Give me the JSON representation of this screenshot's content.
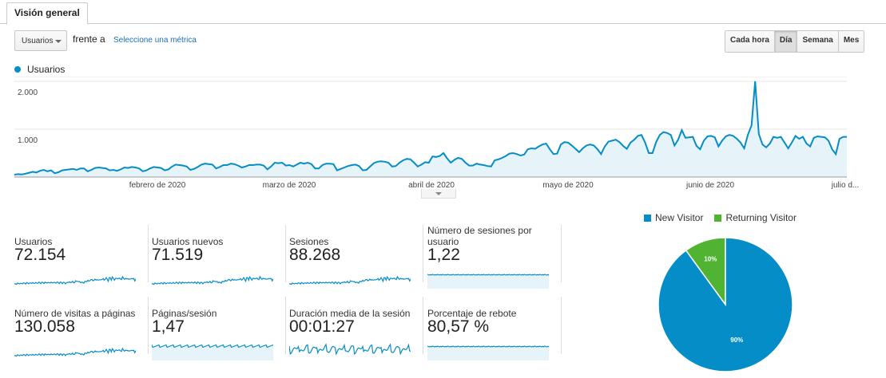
{
  "tab": {
    "label": "Visión general"
  },
  "controls": {
    "metric_select": "Usuarios",
    "versus_text": "frente a",
    "select_metric_link": "Seleccione una métrica",
    "granularity": [
      "Cada hora",
      "Día",
      "Semana",
      "Mes"
    ],
    "granularity_active": "Día"
  },
  "colors": {
    "series": "#058dc7",
    "area": "#e6f4fa",
    "returning": "#50b432"
  },
  "chart_data": [
    {
      "type": "area",
      "title": "",
      "legend": [
        "Usuarios"
      ],
      "legend_position": "top-left",
      "y_ticks": [
        "2.000",
        "1.000"
      ],
      "ylim": [
        0,
        2000
      ],
      "x_ticks": [
        "febrero de 2020",
        "marzo de 2020",
        "abril de 2020",
        "mayo de 2020",
        "junio de 2020",
        "julio d..."
      ],
      "grid": true,
      "series": [
        {
          "name": "Usuarios",
          "values": [
            50,
            60,
            55,
            70,
            90,
            110,
            95,
            130,
            150,
            120,
            140,
            80,
            100,
            140,
            150,
            160,
            170,
            150,
            180,
            180,
            120,
            150,
            190,
            200,
            190,
            180,
            140,
            150,
            130,
            160,
            200,
            190,
            210,
            200,
            180,
            120,
            140,
            180,
            210,
            200,
            190,
            140,
            160,
            220,
            260,
            250,
            240,
            220,
            150,
            170,
            210,
            260,
            280,
            270,
            260,
            180,
            210,
            250,
            250,
            280,
            270,
            240,
            200,
            220,
            250,
            250,
            260,
            260,
            240,
            160,
            220,
            300,
            290,
            300,
            240,
            250,
            220,
            260,
            300,
            280,
            300,
            270,
            180,
            180,
            250,
            280,
            280,
            270,
            140,
            170,
            200,
            230,
            250,
            260,
            230,
            140,
            150,
            220,
            290,
            320,
            330,
            320,
            300,
            220,
            230,
            300,
            350,
            380,
            370,
            300,
            220,
            260,
            310,
            300,
            430,
            420,
            440,
            500,
            390,
            300,
            360,
            400,
            380,
            300,
            240,
            240,
            280,
            260,
            250,
            230,
            220,
            350,
            370,
            400,
            440,
            490,
            500,
            480,
            450,
            470,
            580,
            600,
            590,
            640,
            680,
            700,
            580,
            480,
            490,
            680,
            730,
            720,
            660,
            590,
            520,
            600,
            660,
            680,
            660,
            580,
            480,
            640,
            740,
            760,
            780,
            730,
            650,
            590,
            720,
            780,
            860,
            880,
            720,
            500,
            500,
            730,
            880,
            940,
            920,
            880,
            660,
            780,
            980,
            820,
            830,
            840,
            650,
            580,
            760,
            850,
            860,
            830,
            640,
            760,
            850,
            880,
            860,
            800,
            720,
            600,
            880,
            1080,
            2000,
            900,
            680,
            620,
            700,
            840,
            820,
            840,
            720,
            600,
            720,
            860,
            800,
            840,
            700,
            640,
            820,
            850,
            840,
            830,
            760,
            580,
            480,
            800,
            840,
            840
          ]
        }
      ]
    },
    {
      "type": "pie",
      "legend_position": "top",
      "series": [
        {
          "name": "New Visitor",
          "value": 90,
          "label": "90%"
        },
        {
          "name": "Returning Visitor",
          "value": 10,
          "label": "10%"
        }
      ]
    }
  ],
  "metrics": [
    {
      "label": "Usuarios",
      "value": "72.154",
      "spark": "trend"
    },
    {
      "label": "Usuarios nuevos",
      "value": "71.519",
      "spark": "trend"
    },
    {
      "label": "Sesiones",
      "value": "88.268",
      "spark": "trend"
    },
    {
      "label": "Número de sesiones por usuario",
      "value": "1,22",
      "spark": "flat"
    },
    {
      "label": "Número de visitas a páginas",
      "value": "130.058",
      "spark": "trend"
    },
    {
      "label": "Páginas/sesión",
      "value": "1,47",
      "spark": "noisy"
    },
    {
      "label": "Duración media de la sesión",
      "value": "00:01:27",
      "spark": "volatile"
    },
    {
      "label": "Porcentaje de rebote",
      "value": "80,57 %",
      "spark": "flat"
    }
  ]
}
